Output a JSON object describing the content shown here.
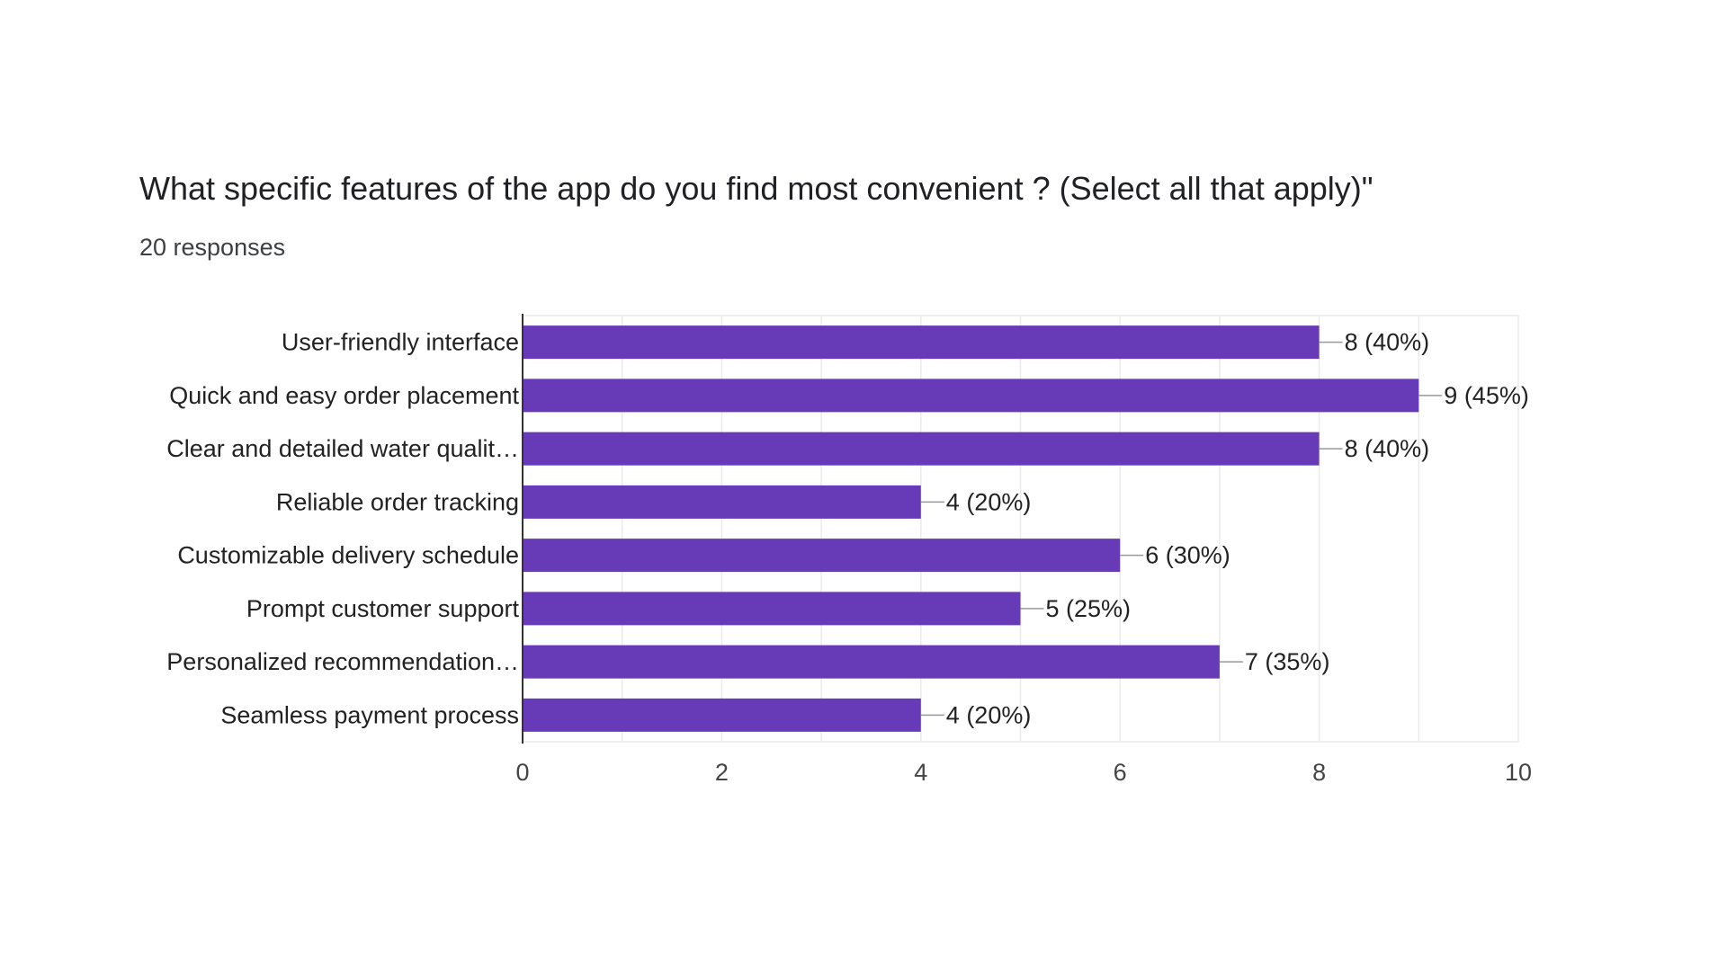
{
  "question": {
    "title": "What specific features of the app do you find most convenient ? (Select all that apply)\"",
    "responses_label": "20 responses"
  },
  "colors": {
    "bar": "#673ab7",
    "grid": "#ebebeb",
    "axis": "#333333",
    "label_text": "#222222",
    "tick_text": "#444444",
    "leader": "#999999"
  },
  "chart_data": {
    "type": "bar",
    "orientation": "horizontal",
    "categories": [
      "User-friendly interface",
      "Quick and easy order placement",
      "Clear and detailed water qualit…",
      "Reliable order tracking",
      "Customizable delivery schedule",
      "Prompt customer support",
      "Personalized recommendation…",
      "Seamless payment process"
    ],
    "values": [
      8,
      9,
      8,
      4,
      6,
      5,
      7,
      4
    ],
    "data_labels": [
      "8 (40%)",
      "9 (45%)",
      "8 (40%)",
      "4 (20%)",
      "6 (30%)",
      "5 (25%)",
      "7 (35%)",
      "4 (20%)"
    ],
    "xlim": [
      0,
      10
    ],
    "xticks": [
      "0",
      "2",
      "4",
      "6",
      "8",
      "10"
    ],
    "xtick_values": [
      0,
      2,
      4,
      6,
      8,
      10
    ],
    "grid": true,
    "legend": "none"
  }
}
